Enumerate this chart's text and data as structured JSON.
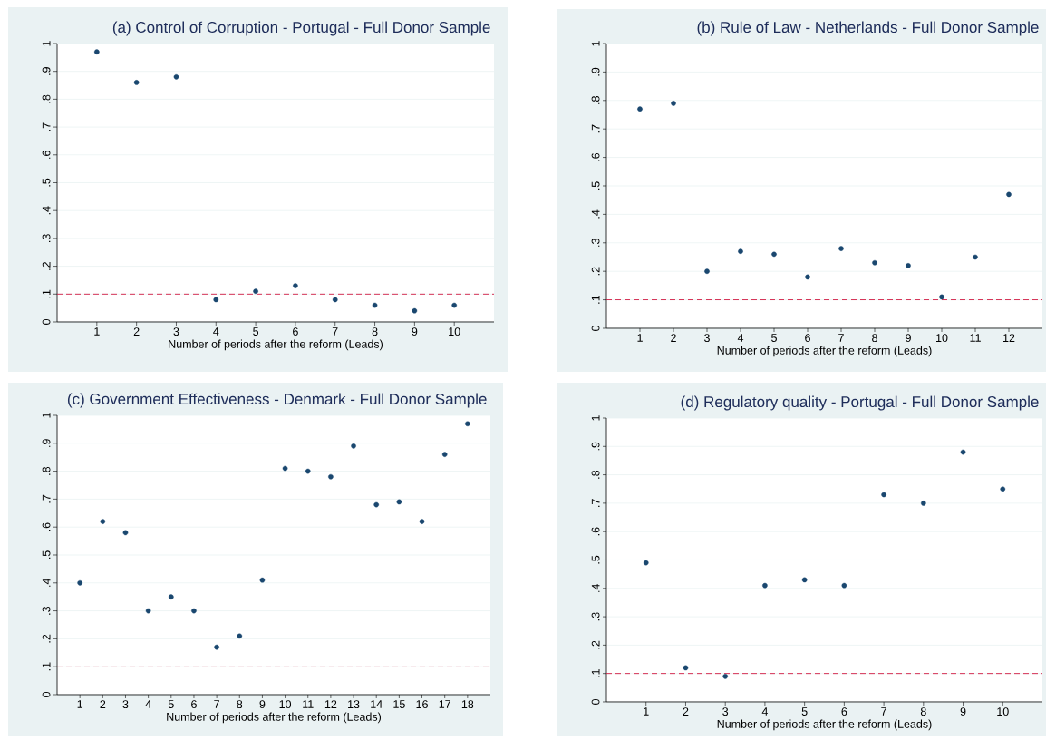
{
  "chart_data": [
    {
      "type": "scatter",
      "title": "(a) Control of Corruption - Portugal - Full Donor Sample",
      "xlabel": "Number of periods after the reform (Leads)",
      "marker": "circle",
      "grid": "y",
      "color": "#1a476f",
      "x": [
        1,
        2,
        3,
        4,
        5,
        6,
        7,
        8,
        9,
        10
      ],
      "values": [
        0.97,
        0.86,
        0.88,
        0.08,
        0.11,
        0.13,
        0.08,
        0.06,
        0.04,
        0.06
      ],
      "xlim": [
        0,
        11
      ],
      "ylim": [
        0,
        1
      ],
      "xticks": [
        1,
        2,
        3,
        4,
        5,
        6,
        7,
        8,
        9,
        10
      ],
      "yticks": [
        {
          "value": 0,
          "label": "0"
        },
        {
          "value": 0.1,
          "label": ".1"
        },
        {
          "value": 0.2,
          "label": ".2"
        },
        {
          "value": 0.3,
          "label": ".3"
        },
        {
          "value": 0.4,
          "label": ".4"
        },
        {
          "value": 0.5,
          "label": ".5"
        },
        {
          "value": 0.6,
          "label": ".6"
        },
        {
          "value": 0.7,
          "label": ".7"
        },
        {
          "value": 0.8,
          "label": ".8"
        },
        {
          "value": 0.9,
          "label": ".9"
        },
        {
          "value": 1,
          "label": "1"
        }
      ],
      "ref_lines": [
        {
          "axis": "y",
          "value": 0.1,
          "color": "#d0103a",
          "line_style": "dashed"
        }
      ]
    },
    {
      "type": "scatter",
      "title": "(b) Rule of Law - Netherlands - Full Donor Sample",
      "xlabel": "Number of periods after the reform (Leads)",
      "marker": "circle",
      "grid": "y",
      "color": "#1a476f",
      "x": [
        1,
        2,
        3,
        4,
        5,
        6,
        7,
        8,
        9,
        10,
        11,
        12
      ],
      "values": [
        0.77,
        0.79,
        0.2,
        0.27,
        0.26,
        0.18,
        0.28,
        0.23,
        0.22,
        0.11,
        0.25,
        0.47
      ],
      "xlim": [
        0,
        13
      ],
      "ylim": [
        0,
        1
      ],
      "xticks": [
        1,
        2,
        3,
        4,
        5,
        6,
        7,
        8,
        9,
        10,
        11,
        12
      ],
      "yticks": [
        {
          "value": 0,
          "label": "0"
        },
        {
          "value": 0.1,
          "label": ".1"
        },
        {
          "value": 0.2,
          "label": ".2"
        },
        {
          "value": 0.3,
          "label": ".3"
        },
        {
          "value": 0.4,
          "label": ".4"
        },
        {
          "value": 0.5,
          "label": ".5"
        },
        {
          "value": 0.6,
          "label": ".6"
        },
        {
          "value": 0.7,
          "label": ".7"
        },
        {
          "value": 0.8,
          "label": ".8"
        },
        {
          "value": 0.9,
          "label": ".9"
        },
        {
          "value": 1,
          "label": "1"
        }
      ],
      "ref_lines": [
        {
          "axis": "y",
          "value": 0.1,
          "color": "#d0103a",
          "line_style": "dashed"
        }
      ]
    },
    {
      "type": "scatter",
      "title": "(c) Government Effectiveness - Denmark - Full Donor Sample",
      "xlabel": "Number of periods after the reform (Leads)",
      "marker": "circle",
      "grid": "y",
      "color": "#1a476f",
      "x": [
        1,
        2,
        3,
        4,
        5,
        6,
        7,
        8,
        9,
        10,
        11,
        12,
        13,
        14,
        15,
        16,
        17,
        18
      ],
      "values": [
        0.4,
        0.62,
        0.58,
        0.3,
        0.35,
        0.3,
        0.17,
        0.21,
        0.41,
        0.81,
        0.8,
        0.78,
        0.89,
        0.68,
        0.69,
        0.62,
        0.86,
        0.97
      ],
      "xlim": [
        0,
        19
      ],
      "ylim": [
        0,
        1
      ],
      "xticks": [
        1,
        2,
        3,
        4,
        5,
        6,
        7,
        8,
        9,
        10,
        11,
        12,
        13,
        14,
        15,
        16,
        17,
        18
      ],
      "yticks": [
        {
          "value": 0,
          "label": "0"
        },
        {
          "value": 0.1,
          "label": ".1"
        },
        {
          "value": 0.2,
          "label": ".2"
        },
        {
          "value": 0.3,
          "label": ".3"
        },
        {
          "value": 0.4,
          "label": ".4"
        },
        {
          "value": 0.5,
          "label": ".5"
        },
        {
          "value": 0.6,
          "label": ".6"
        },
        {
          "value": 0.7,
          "label": ".7"
        },
        {
          "value": 0.8,
          "label": ".8"
        },
        {
          "value": 0.9,
          "label": ".9"
        },
        {
          "value": 1,
          "label": "1"
        }
      ],
      "ref_lines": [
        {
          "axis": "y",
          "value": 0.1,
          "color": "#d0103a",
          "line_style": "dashed"
        }
      ]
    },
    {
      "type": "scatter",
      "title": "(d) Regulatory quality - Portugal - Full Donor Sample",
      "xlabel": "Number of periods after the reform (Leads)",
      "marker": "circle",
      "grid": "y",
      "color": "#1a476f",
      "x": [
        1,
        2,
        3,
        4,
        5,
        6,
        7,
        8,
        9,
        10
      ],
      "values": [
        0.49,
        0.12,
        0.09,
        0.41,
        0.43,
        0.41,
        0.73,
        0.7,
        0.88,
        0.75
      ],
      "xlim": [
        0,
        11
      ],
      "ylim": [
        0,
        1
      ],
      "xticks": [
        1,
        2,
        3,
        4,
        5,
        6,
        7,
        8,
        9,
        10
      ],
      "yticks": [
        {
          "value": 0,
          "label": "0"
        },
        {
          "value": 0.1,
          "label": ".1"
        },
        {
          "value": 0.2,
          "label": ".2"
        },
        {
          "value": 0.3,
          "label": ".3"
        },
        {
          "value": 0.4,
          "label": ".4"
        },
        {
          "value": 0.5,
          "label": ".5"
        },
        {
          "value": 0.6,
          "label": ".6"
        },
        {
          "value": 0.7,
          "label": ".7"
        },
        {
          "value": 0.8,
          "label": ".8"
        },
        {
          "value": 0.9,
          "label": ".9"
        },
        {
          "value": 1,
          "label": "1"
        }
      ],
      "ref_lines": [
        {
          "axis": "y",
          "value": 0.1,
          "color": "#d0103a",
          "line_style": "dashed"
        }
      ]
    }
  ]
}
